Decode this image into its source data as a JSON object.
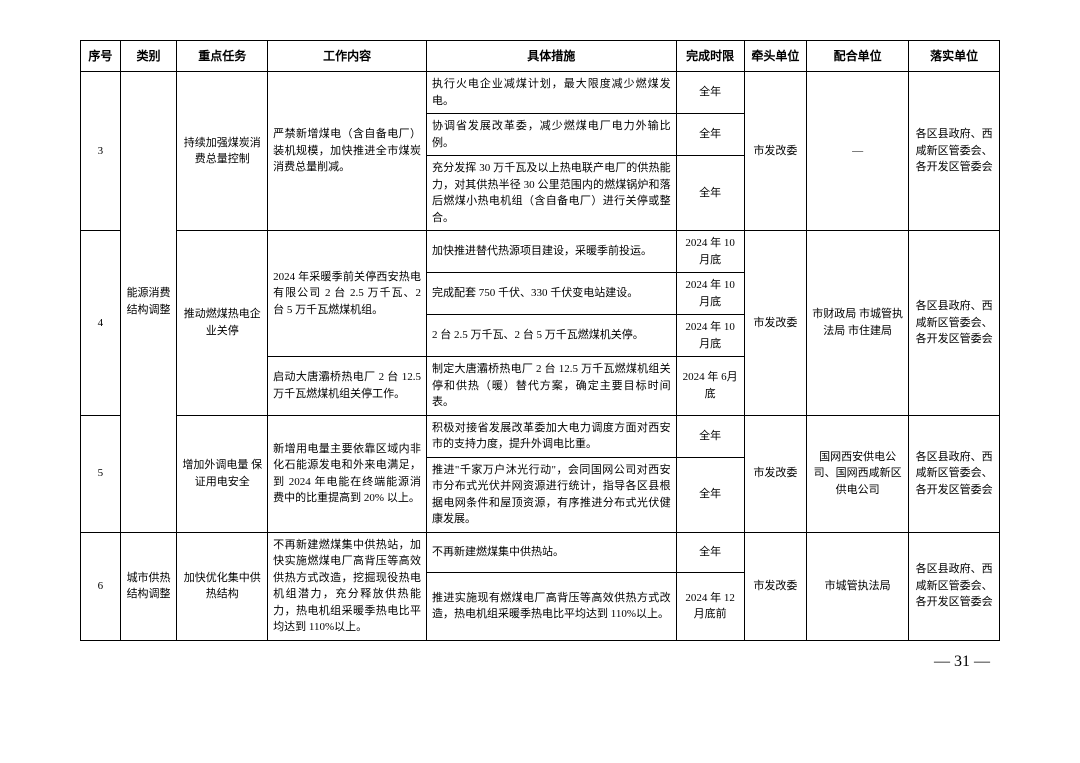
{
  "headers": {
    "seq": "序号",
    "category": "类别",
    "task": "重点任务",
    "content": "工作内容",
    "measure": "具体措施",
    "deadline": "完成时限",
    "lead": "牵头单位",
    "coop": "配合单位",
    "impl": "落实单位"
  },
  "category1": "能源消费结构调整",
  "category2": "城市供热结构调整",
  "row3": {
    "seq": "3",
    "task": "持续加强煤炭消费总量控制",
    "content": "严禁新增煤电（含自备电厂）装机规模，加快推进全市煤炭消费总量削减。",
    "m1": "执行火电企业减煤计划，最大限度减少燃煤发电。",
    "m2": "协调省发展改革委，减少燃煤电厂电力外输比例。",
    "m3": "充分发挥 30 万千瓦及以上热电联产电厂的供热能力，对其供热半径 30 公里范围内的燃煤锅炉和落后燃煤小热电机组（含自备电厂）进行关停或整合。",
    "d1": "全年",
    "d2": "全年",
    "d3": "全年",
    "lead": "市发改委",
    "coop": "—",
    "impl": "各区县政府、西咸新区管委会、各开发区管委会"
  },
  "row4": {
    "seq": "4",
    "task": "推动燃煤热电企业关停",
    "content1": "2024 年采暖季前关停西安热电有限公司 2 台 2.5 万千瓦、2 台 5 万千瓦燃煤机组。",
    "content2": "启动大唐灞桥热电厂 2 台 12.5 万千瓦燃煤机组关停工作。",
    "m1": "加快推进替代热源项目建设，采暖季前投运。",
    "m2": "完成配套 750 千伏、330 千伏变电站建设。",
    "m3": "2 台 2.5 万千瓦、2 台 5 万千瓦燃煤机关停。",
    "m4": "制定大唐灞桥热电厂 2 台 12.5 万千瓦燃煤机组关停和供热（暖）替代方案，确定主要目标时间表。",
    "d1": "2024 年 10月底",
    "d2": "2024 年 10月底",
    "d3": "2024 年 10月底",
    "d4": "2024 年 6月底",
    "lead": "市发改委",
    "coop": "市财政局 市城管执法局 市住建局",
    "impl": "各区县政府、西咸新区管委会、各开发区管委会"
  },
  "row5": {
    "seq": "5",
    "task": "增加外调电量 保证用电安全",
    "content": "新增用电量主要依靠区域内非化石能源发电和外来电满足，到 2024 年电能在终端能源消费中的比重提高到 20% 以上。",
    "m1": "积极对接省发展改革委加大电力调度方面对西安市的支持力度，提升外调电比重。",
    "m2": "推进\"千家万户沐光行动\"，会同国网公司对西安市分布式光伏并网资源进行统计，指导各区县根据电网条件和屋顶资源，有序推进分布式光伏健康发展。",
    "d1": "全年",
    "d2": "全年",
    "lead": "市发改委",
    "coop": "国网西安供电公司、国网西咸新区供电公司",
    "impl": "各区县政府、西咸新区管委会、各开发区管委会"
  },
  "row6": {
    "seq": "6",
    "task": "加快优化集中供热结构",
    "content": "不再新建燃煤集中供热站，加快实施燃煤电厂高背压等高效供热方式改造，挖掘现役热电机组潜力，充分释放供热能力，热电机组采暖季热电比平均达到 110%以上。",
    "m1": "不再新建燃煤集中供热站。",
    "m2": "推进实施现有燃煤电厂高背压等高效供热方式改造，热电机组采暖季热电比平均达到 110%以上。",
    "d1": "全年",
    "d2": "2024 年 12 月底前",
    "lead": "市发改委",
    "coop": "市城管执法局",
    "impl": "各区县政府、西咸新区管委会、各开发区管委会"
  },
  "pageNumber": "— 31 —"
}
